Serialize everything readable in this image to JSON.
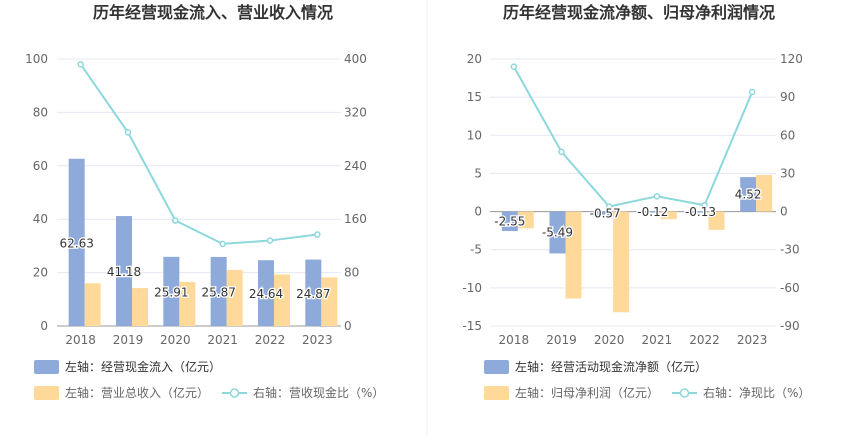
{
  "chart_data": [
    {
      "type": "bar+line",
      "title": "历年经营现金流入、营业收入情况",
      "categories": [
        "2018",
        "2019",
        "2020",
        "2021",
        "2022",
        "2023"
      ],
      "left_axis": {
        "ticks": [
          "0",
          "20",
          "40",
          "60",
          "80",
          "100"
        ],
        "range": [
          0,
          100
        ]
      },
      "right_axis": {
        "ticks": [
          "0",
          "80",
          "160",
          "240",
          "320",
          "400"
        ],
        "range": [
          0,
          400
        ]
      },
      "series": [
        {
          "name": "左轴：经营现金流入（亿元）",
          "axis": "left",
          "kind": "bar",
          "color": "#8eaadb",
          "values": [
            62.63,
            41.18,
            25.91,
            25.87,
            24.64,
            24.87
          ],
          "labels": [
            "62.63",
            "41.18",
            "25.91",
            "25.87",
            "24.64",
            "24.87"
          ]
        },
        {
          "name": "左轴：营业总收入（亿元）",
          "axis": "left",
          "kind": "bar",
          "color": "#ffd99a",
          "values": [
            16.0,
            14.2,
            16.5,
            21.0,
            19.3,
            18.2
          ]
        },
        {
          "name": "右轴：营收现金比（%）",
          "axis": "right",
          "kind": "line",
          "color": "#8dd8dd",
          "values": [
            392,
            290,
            158,
            123,
            128,
            137
          ]
        }
      ],
      "legend": [
        "左轴：经营现金流入（亿元）",
        "左轴：营业总收入（亿元）",
        "右轴：营收现金比（%）"
      ]
    },
    {
      "type": "bar+line",
      "title": "历年经营现金流净额、归母净利润情况",
      "categories": [
        "2018",
        "2019",
        "2020",
        "2021",
        "2022",
        "2023"
      ],
      "left_axis": {
        "ticks": [
          "-15",
          "-10",
          "-5",
          "0",
          "5",
          "10",
          "15",
          "20"
        ],
        "range": [
          -15,
          20
        ]
      },
      "right_axis": {
        "ticks": [
          "-90",
          "-60",
          "-30",
          "0",
          "30",
          "60",
          "90",
          "120"
        ],
        "range": [
          -90,
          120
        ]
      },
      "series": [
        {
          "name": "左轴：经营活动现金流净额（亿元）",
          "axis": "left",
          "kind": "bar",
          "color": "#8eaadb",
          "values": [
            -2.55,
            -5.49,
            -0.57,
            -0.12,
            -0.13,
            4.52
          ],
          "labels": [
            "-2.55",
            "-5.49",
            "-0.57",
            "-0.12",
            "-0.13",
            "4.52"
          ]
        },
        {
          "name": "左轴：归母净利润（亿元）",
          "axis": "left",
          "kind": "bar",
          "color": "#ffd99a",
          "values": [
            -2.2,
            -11.4,
            -13.2,
            -1.0,
            -2.4,
            4.8
          ]
        },
        {
          "name": "右轴：净现比（%）",
          "axis": "right",
          "kind": "line",
          "color": "#8dd8dd",
          "values": [
            114,
            47,
            4,
            12,
            5,
            94
          ]
        }
      ],
      "legend": [
        "左轴：经营活动现金流净额（亿元）",
        "左轴：归母净利润（亿元）",
        "右轴：净现比（%）"
      ]
    }
  ]
}
